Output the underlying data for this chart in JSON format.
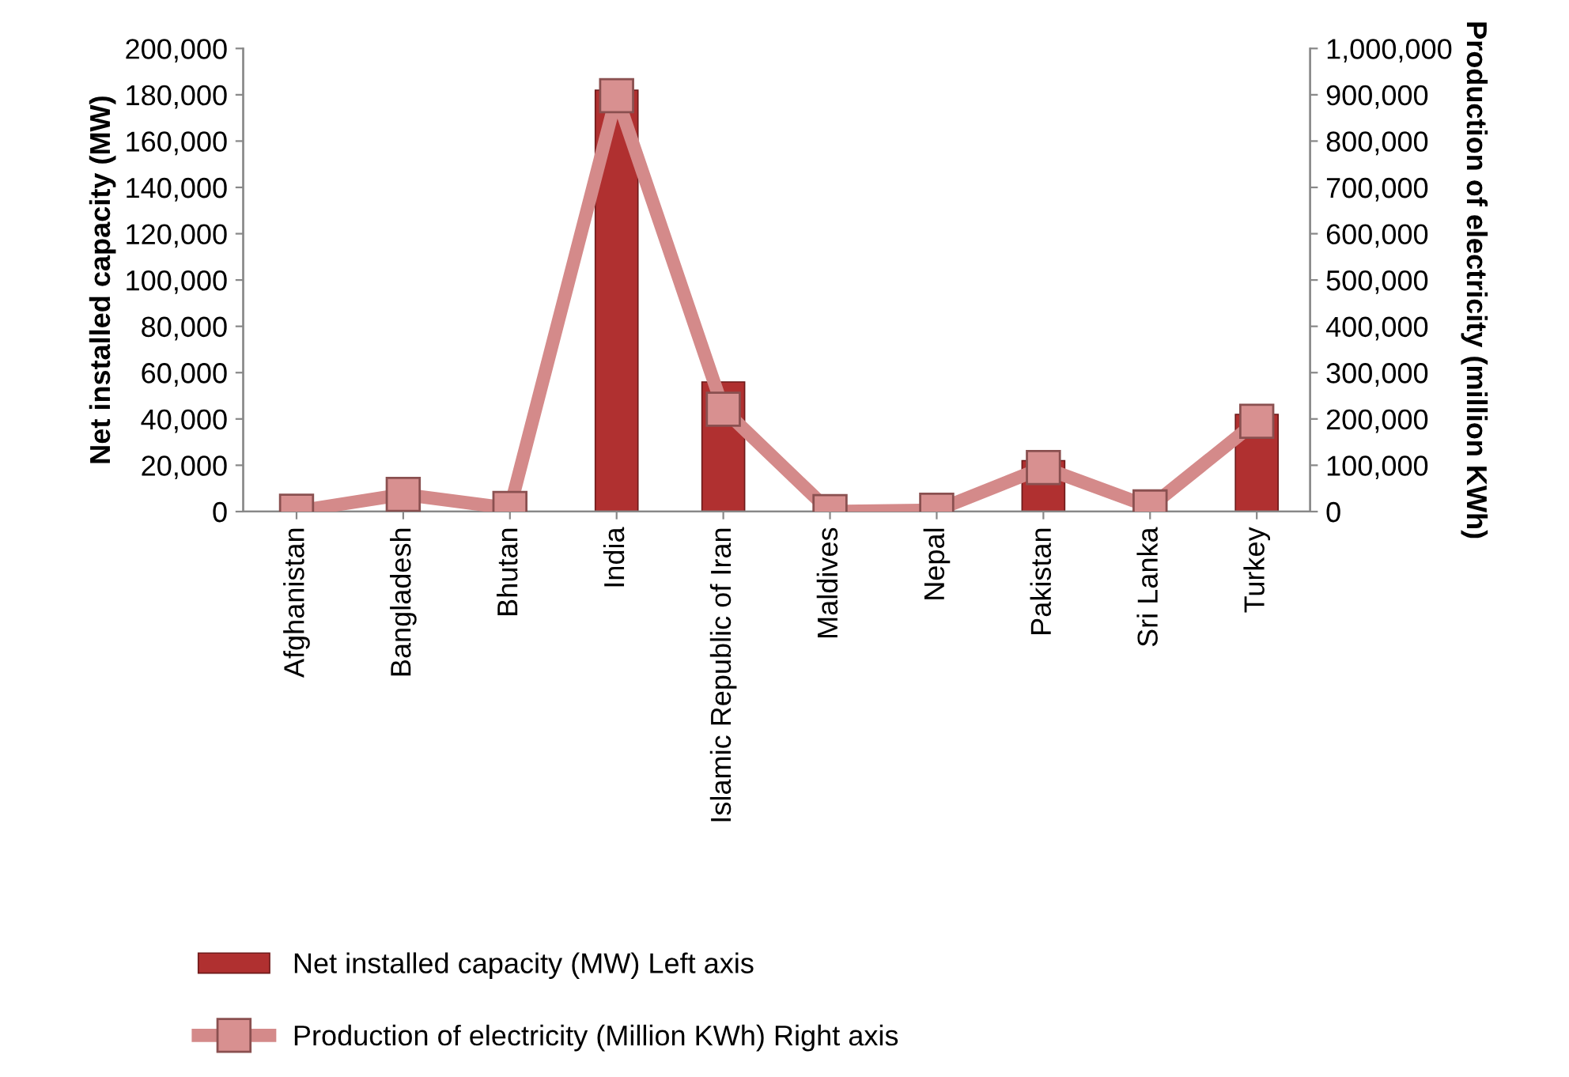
{
  "chart_data": {
    "type": "bar",
    "categories": [
      "Afghanistan",
      "Bangladesh",
      "Bhutan",
      "India",
      "Islamic Republic of Iran",
      "Maldives",
      "Nepal",
      "Pakistan",
      "Sri Lanka",
      "Turkey"
    ],
    "ylabel": "Net installed capacity (MW)",
    "y2label": "Production of electricity (million KWh)",
    "series": [
      {
        "name": "Net installed capacity (MW) Left axis",
        "color": "#b03030",
        "values": [
          null,
          null,
          null,
          182000,
          56000,
          null,
          null,
          22000,
          null,
          42000
        ]
      },
      {
        "name": "Production of electricity (Million KWh) Right axis",
        "type": "line",
        "axis": "y2",
        "color": "#d48a8a",
        "marker": "square",
        "values": [
          1000,
          37000,
          7000,
          898000,
          221000,
          0,
          3000,
          95000,
          10000,
          195000
        ]
      }
    ],
    "ylim": [
      0,
      200000
    ],
    "yticks": [
      {
        "value": 0,
        "label": "0"
      },
      {
        "value": 20000,
        "label": "20,000"
      },
      {
        "value": 40000,
        "label": "40,000"
      },
      {
        "value": 60000,
        "label": "60,000"
      },
      {
        "value": 80000,
        "label": "80,000"
      },
      {
        "value": 100000,
        "label": "100,000"
      },
      {
        "value": 120000,
        "label": "120,000"
      },
      {
        "value": 140000,
        "label": "140,000"
      },
      {
        "value": 160000,
        "label": "160,000"
      },
      {
        "value": 180000,
        "label": "180,000"
      },
      {
        "value": 200000,
        "label": "200,000"
      }
    ],
    "y2lim": [
      0,
      1000000
    ],
    "y2ticks": [
      {
        "value": 0,
        "label": "0"
      },
      {
        "value": 100000,
        "label": "100,000"
      },
      {
        "value": 200000,
        "label": "200,000"
      },
      {
        "value": 300000,
        "label": "300,000"
      },
      {
        "value": 400000,
        "label": "400,000"
      },
      {
        "value": 500000,
        "label": "500,000"
      },
      {
        "value": 600000,
        "label": "600,000"
      },
      {
        "value": 700000,
        "label": "700,000"
      },
      {
        "value": 800000,
        "label": "800,000"
      },
      {
        "value": 900000,
        "label": "900,000"
      },
      {
        "value": 1000000,
        "label": "1,000,000"
      }
    ],
    "grid": false,
    "legend": "bottom left"
  }
}
